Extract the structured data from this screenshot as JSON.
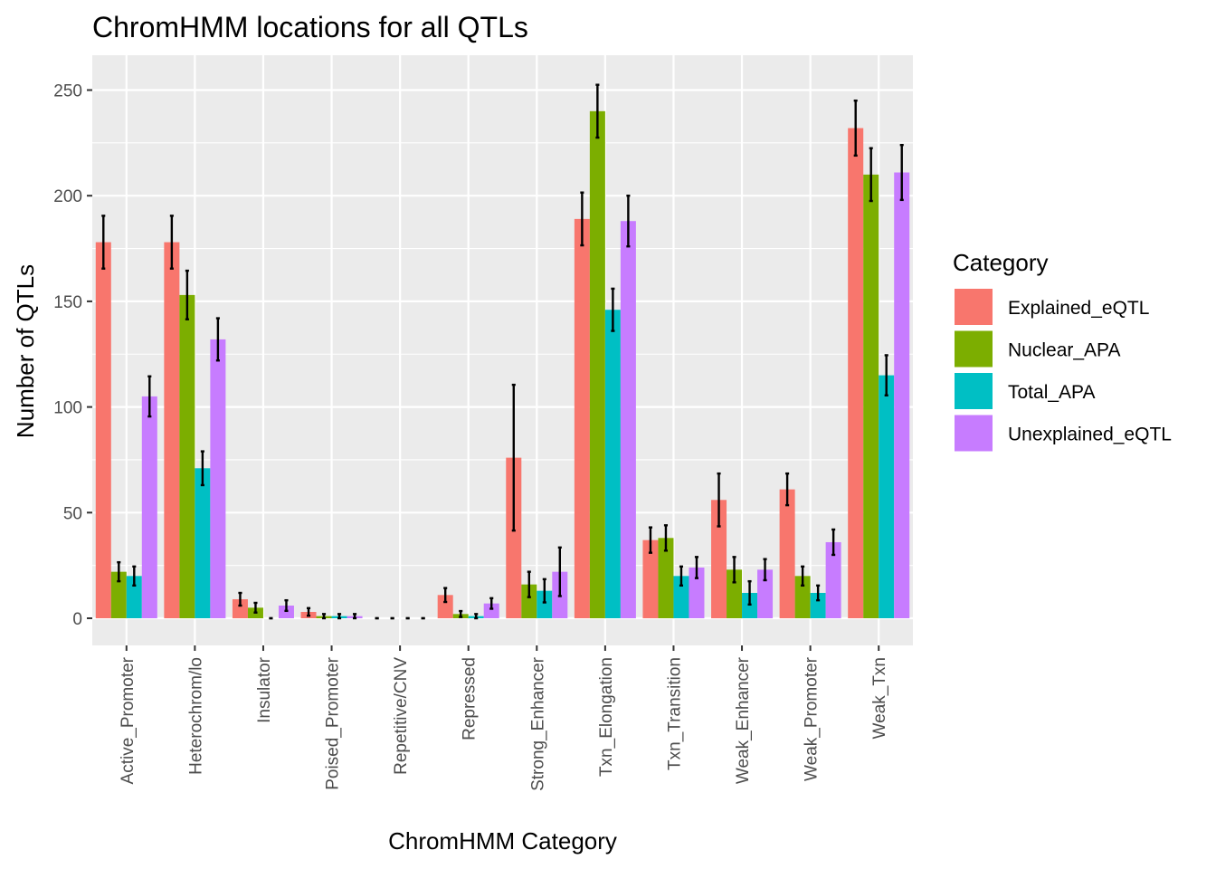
{
  "chart_data": {
    "type": "bar",
    "title": "ChromHMM locations for all QTLs",
    "xlabel": "ChromHMM Category",
    "ylabel": "Number of QTLs",
    "ylim": [
      -12,
      265
    ],
    "yticks": [
      0,
      50,
      100,
      150,
      200,
      250
    ],
    "categories": [
      "Active_Promoter",
      "Heterochrom/lo",
      "Insulator",
      "Poised_Promoter",
      "Repetitive/CNV",
      "Repressed",
      "Strong_Enhancer",
      "Txn_Elongation",
      "Txn_Transition",
      "Weak_Enhancer",
      "Weak_Promoter",
      "Weak_Txn"
    ],
    "legend": {
      "title": "Category",
      "position": "right"
    },
    "series": [
      {
        "name": "Explained_eQTL",
        "color": "#F8766D",
        "values": [
          178,
          178,
          9,
          3,
          0,
          11,
          76,
          189,
          37,
          56,
          61,
          232
        ],
        "error": [
          12.5,
          12.5,
          3,
          1.8,
          0,
          3.3,
          34.5,
          12.5,
          6,
          12.5,
          7.5,
          13
        ]
      },
      {
        "name": "Nuclear_APA",
        "color": "#7CAE00",
        "values": [
          22,
          153,
          5,
          1,
          0,
          2,
          16,
          240,
          38,
          23,
          20,
          210
        ],
        "error": [
          4.5,
          11.5,
          2.3,
          1,
          0,
          1.4,
          6,
          12.5,
          6,
          6,
          4.5,
          12.5
        ]
      },
      {
        "name": "Total_APA",
        "color": "#00BFC4",
        "values": [
          20,
          71,
          0,
          1,
          0,
          1,
          13,
          146,
          20,
          12,
          12,
          115
        ],
        "error": [
          4.5,
          8,
          0,
          1,
          0,
          1,
          5.5,
          10,
          4.5,
          5.5,
          3.5,
          9.5
        ]
      },
      {
        "name": "Unexplained_eQTL",
        "color": "#C77CFF",
        "values": [
          105,
          132,
          6,
          1,
          0,
          7,
          22,
          188,
          24,
          23,
          36,
          211
        ],
        "error": [
          9.5,
          10,
          2.5,
          1,
          0,
          2.5,
          11.5,
          12,
          5,
          5,
          6,
          13
        ]
      }
    ]
  }
}
